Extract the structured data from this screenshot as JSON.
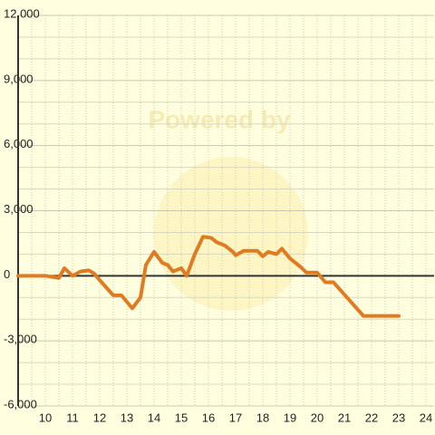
{
  "chart_data": {
    "type": "line",
    "watermark": "Powered by",
    "x": [
      9,
      10,
      10.5,
      10.7,
      11,
      11.3,
      11.6,
      11.8,
      12,
      12.5,
      12.8,
      13.2,
      13.5,
      13.7,
      14,
      14.3,
      14.5,
      14.7,
      15,
      15.2,
      15.5,
      15.8,
      16.1,
      16.3,
      16.6,
      16.9,
      17,
      17.3,
      17.8,
      18,
      18.2,
      18.5,
      18.7,
      19,
      19.4,
      19.6,
      20,
      20.3,
      20.6,
      21.7,
      23
    ],
    "series": [
      {
        "color": "#e07b22",
        "values": [
          0,
          0,
          -100,
          350,
          0,
          200,
          250,
          100,
          -200,
          -900,
          -900,
          -1500,
          -1000,
          500,
          1100,
          600,
          500,
          200,
          350,
          0,
          1000,
          1800,
          1750,
          1550,
          1400,
          1100,
          950,
          1150,
          1150,
          900,
          1100,
          1000,
          1250,
          800,
          400,
          150,
          150,
          -300,
          -300,
          -1850,
          -1850
        ]
      }
    ],
    "xlim": [
      9,
      24.3
    ],
    "xticks": [
      10,
      11,
      12,
      13,
      14,
      15,
      16,
      17,
      18,
      19,
      20,
      21,
      22,
      23,
      24
    ],
    "minor_xticks": [
      9.5,
      10.5,
      11.5,
      12.5,
      13.5,
      14.5,
      15.5,
      16.5,
      17.5,
      18.5,
      19.5,
      20.5,
      21.5,
      22.5,
      23.5
    ],
    "ylim": [
      -6000,
      12000
    ],
    "yticks": [
      {
        "value": -6000,
        "label": "-6,000"
      },
      {
        "value": -3000,
        "label": "-3,000"
      },
      0,
      {
        "value": 3000,
        "label": "3,000"
      },
      {
        "value": 6000,
        "label": "6,000"
      },
      {
        "value": 9000,
        "label": "9,000"
      },
      {
        "value": 12000,
        "label": "12,000"
      }
    ],
    "minor_yticks": [
      -5000,
      -4000,
      -2000,
      -1000,
      1000,
      2000,
      4000,
      5000,
      7000,
      8000,
      10000,
      11000
    ],
    "grid": true
  }
}
